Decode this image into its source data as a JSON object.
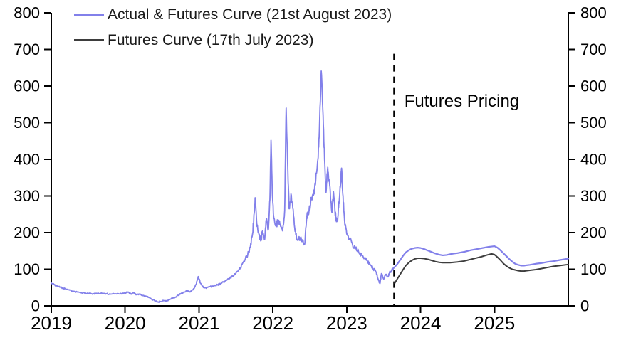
{
  "chart_data": {
    "type": "line",
    "title": "",
    "xlabel": "",
    "ylabel": "",
    "xlim": [
      2019,
      2026
    ],
    "ylim": [
      0,
      800
    ],
    "x_ticks": [
      2019,
      2020,
      2021,
      2022,
      2023,
      2024,
      2025
    ],
    "y_ticks": [
      0,
      100,
      200,
      300,
      400,
      500,
      600,
      700,
      800
    ],
    "y_axis_sides": "both",
    "grid": false,
    "legend_position": "top-left",
    "divider": {
      "x": 2023.64,
      "y_top": 688,
      "label": "Futures Pricing",
      "label_x": 2023.78,
      "label_y": 583
    },
    "series": [
      {
        "name": "Actual & Futures Curve (21st August 2023)",
        "color": "#8280ea",
        "segments": [
          {
            "noisy": true,
            "width": 1.8,
            "points": [
              [
                2019.0,
                63
              ],
              [
                2019.04,
                58
              ],
              [
                2019.08,
                54
              ],
              [
                2019.12,
                51
              ],
              [
                2019.16,
                48
              ],
              [
                2019.2,
                46
              ],
              [
                2019.25,
                43
              ],
              [
                2019.3,
                40
              ],
              [
                2019.35,
                38
              ],
              [
                2019.4,
                36
              ],
              [
                2019.45,
                35
              ],
              [
                2019.5,
                34
              ],
              [
                2019.55,
                33
              ],
              [
                2019.6,
                34
              ],
              [
                2019.65,
                33
              ],
              [
                2019.7,
                34
              ],
              [
                2019.75,
                33
              ],
              [
                2019.8,
                32
              ],
              [
                2019.85,
                33
              ],
              [
                2019.9,
                34
              ],
              [
                2019.95,
                33
              ],
              [
                2020.0,
                35
              ],
              [
                2020.04,
                38
              ],
              [
                2020.08,
                32
              ],
              [
                2020.12,
                36
              ],
              [
                2020.16,
                30
              ],
              [
                2020.2,
                33
              ],
              [
                2020.24,
                28
              ],
              [
                2020.28,
                26
              ],
              [
                2020.32,
                23
              ],
              [
                2020.36,
                18
              ],
              [
                2020.4,
                14
              ],
              [
                2020.44,
                11
              ],
              [
                2020.48,
                12
              ],
              [
                2020.52,
                15
              ],
              [
                2020.56,
                13
              ],
              [
                2020.6,
                17
              ],
              [
                2020.64,
                21
              ],
              [
                2020.68,
                24
              ],
              [
                2020.72,
                29
              ],
              [
                2020.76,
                34
              ],
              [
                2020.8,
                38
              ],
              [
                2020.84,
                41
              ],
              [
                2020.88,
                38
              ],
              [
                2020.92,
                44
              ],
              [
                2020.96,
                58
              ],
              [
                2020.99,
                80
              ],
              [
                2021.02,
                62
              ],
              [
                2021.06,
                50
              ],
              [
                2021.1,
                48
              ],
              [
                2021.15,
                52
              ],
              [
                2021.2,
                55
              ],
              [
                2021.25,
                58
              ],
              [
                2021.3,
                61
              ],
              [
                2021.35,
                67
              ],
              [
                2021.4,
                74
              ],
              [
                2021.45,
                80
              ],
              [
                2021.5,
                89
              ],
              [
                2021.55,
                100
              ],
              [
                2021.58,
                112
              ],
              [
                2021.62,
                125
              ],
              [
                2021.66,
                140
              ],
              [
                2021.69,
                160
              ],
              [
                2021.72,
                190
              ],
              [
                2021.74,
                230
              ],
              [
                2021.76,
                295
              ],
              [
                2021.78,
                230
              ],
              [
                2021.81,
                196
              ],
              [
                2021.84,
                178
              ],
              [
                2021.86,
                205
              ],
              [
                2021.89,
                182
              ],
              [
                2021.91,
                235
              ],
              [
                2021.94,
                210
              ],
              [
                2021.96,
                290
              ],
              [
                2021.975,
                452
              ],
              [
                2021.99,
                330
              ],
              [
                2022.01,
                245
              ],
              [
                2022.04,
                218
              ],
              [
                2022.07,
                232
              ],
              [
                2022.1,
                222
              ],
              [
                2022.13,
                205
              ],
              [
                2022.16,
                260
              ],
              [
                2022.18,
                540
              ],
              [
                2022.2,
                390
              ],
              [
                2022.22,
                265
              ],
              [
                2022.25,
                302
              ],
              [
                2022.28,
                245
              ],
              [
                2022.31,
                195
              ],
              [
                2022.34,
                178
              ],
              [
                2022.37,
                186
              ],
              [
                2022.4,
                176
              ],
              [
                2022.43,
                168
              ],
              [
                2022.46,
                242
              ],
              [
                2022.49,
                260
              ],
              [
                2022.52,
                291
              ],
              [
                2022.55,
                302
              ],
              [
                2022.58,
                342
              ],
              [
                2022.61,
                400
              ],
              [
                2022.63,
                480
              ],
              [
                2022.655,
                641
              ],
              [
                2022.68,
                520
              ],
              [
                2022.7,
                400
              ],
              [
                2022.72,
                310
              ],
              [
                2022.74,
                372
              ],
              [
                2022.76,
                345
              ],
              [
                2022.78,
                298
              ],
              [
                2022.8,
                255
              ],
              [
                2022.82,
                312
              ],
              [
                2022.84,
                262
              ],
              [
                2022.86,
                230
              ],
              [
                2022.88,
                242
              ],
              [
                2022.9,
                290
              ],
              [
                2022.92,
                340
              ],
              [
                2022.93,
                376
              ],
              [
                2022.95,
                300
              ],
              [
                2022.97,
                235
              ],
              [
                2023.0,
                196
              ],
              [
                2023.04,
                184
              ],
              [
                2023.08,
                166
              ],
              [
                2023.12,
                156
              ],
              [
                2023.16,
                148
              ],
              [
                2023.2,
                139
              ],
              [
                2023.24,
                130
              ],
              [
                2023.28,
                122
              ],
              [
                2023.32,
                112
              ],
              [
                2023.36,
                101
              ],
              [
                2023.4,
                92
              ],
              [
                2023.43,
                70
              ],
              [
                2023.45,
                61
              ],
              [
                2023.47,
                88
              ],
              [
                2023.5,
                73
              ],
              [
                2023.53,
                86
              ],
              [
                2023.56,
                79
              ],
              [
                2023.59,
                94
              ],
              [
                2023.62,
                99
              ],
              [
                2023.64,
                104
              ]
            ]
          },
          {
            "noisy": false,
            "width": 2.2,
            "points": [
              [
                2023.64,
                104
              ],
              [
                2023.68,
                113
              ],
              [
                2023.72,
                124
              ],
              [
                2023.76,
                136
              ],
              [
                2023.8,
                146
              ],
              [
                2023.84,
                152
              ],
              [
                2023.88,
                156
              ],
              [
                2023.92,
                158
              ],
              [
                2023.96,
                159
              ],
              [
                2024.0,
                158
              ],
              [
                2024.05,
                155
              ],
              [
                2024.1,
                151
              ],
              [
                2024.15,
                147
              ],
              [
                2024.2,
                143
              ],
              [
                2024.25,
                140
              ],
              [
                2024.3,
                138
              ],
              [
                2024.35,
                139
              ],
              [
                2024.4,
                141
              ],
              [
                2024.45,
                143
              ],
              [
                2024.5,
                144
              ],
              [
                2024.55,
                146
              ],
              [
                2024.6,
                148
              ],
              [
                2024.68,
                152
              ],
              [
                2024.76,
                155
              ],
              [
                2024.84,
                158
              ],
              [
                2024.92,
                161
              ],
              [
                2025.0,
                163
              ],
              [
                2025.04,
                159
              ],
              [
                2025.08,
                152
              ],
              [
                2025.12,
                144
              ],
              [
                2025.16,
                136
              ],
              [
                2025.2,
                128
              ],
              [
                2025.24,
                121
              ],
              [
                2025.28,
                115
              ],
              [
                2025.32,
                112
              ],
              [
                2025.36,
                110
              ],
              [
                2025.4,
                110
              ],
              [
                2025.44,
                111
              ],
              [
                2025.48,
                112
              ],
              [
                2025.56,
                115
              ],
              [
                2025.64,
                117
              ],
              [
                2025.72,
                120
              ],
              [
                2025.8,
                122
              ],
              [
                2025.88,
                125
              ],
              [
                2026.0,
                129
              ]
            ]
          }
        ]
      },
      {
        "name": "Futures Curve (17th July 2023)",
        "color": "#3d3d3d",
        "segments": [
          {
            "noisy": false,
            "width": 2.0,
            "points": [
              [
                2023.65,
                62
              ],
              [
                2023.68,
                72
              ],
              [
                2023.72,
                85
              ],
              [
                2023.76,
                98
              ],
              [
                2023.8,
                110
              ],
              [
                2023.84,
                118
              ],
              [
                2023.88,
                124
              ],
              [
                2023.92,
                128
              ],
              [
                2023.96,
                130
              ],
              [
                2024.0,
                130
              ],
              [
                2024.05,
                129
              ],
              [
                2024.1,
                127
              ],
              [
                2024.15,
                124
              ],
              [
                2024.2,
                121
              ],
              [
                2024.25,
                119
              ],
              [
                2024.3,
                118
              ],
              [
                2024.35,
                118
              ],
              [
                2024.4,
                118
              ],
              [
                2024.45,
                119
              ],
              [
                2024.5,
                120
              ],
              [
                2024.58,
                122
              ],
              [
                2024.66,
                126
              ],
              [
                2024.74,
                130
              ],
              [
                2024.82,
                134
              ],
              [
                2024.9,
                139
              ],
              [
                2024.96,
                142
              ],
              [
                2025.0,
                140
              ],
              [
                2025.04,
                133
              ],
              [
                2025.08,
                125
              ],
              [
                2025.12,
                116
              ],
              [
                2025.16,
                109
              ],
              [
                2025.2,
                104
              ],
              [
                2025.24,
                100
              ],
              [
                2025.28,
                98
              ],
              [
                2025.32,
                96
              ],
              [
                2025.36,
                95
              ],
              [
                2025.4,
                95
              ],
              [
                2025.44,
                96
              ],
              [
                2025.48,
                97
              ],
              [
                2025.56,
                99
              ],
              [
                2025.64,
                102
              ],
              [
                2025.72,
                105
              ],
              [
                2025.8,
                108
              ],
              [
                2025.88,
                110
              ],
              [
                2026.0,
                113
              ]
            ]
          }
        ]
      }
    ],
    "styles": {
      "axis_color": "#000000",
      "tick_label_color": "#000000",
      "divider_color": "#000000"
    }
  }
}
